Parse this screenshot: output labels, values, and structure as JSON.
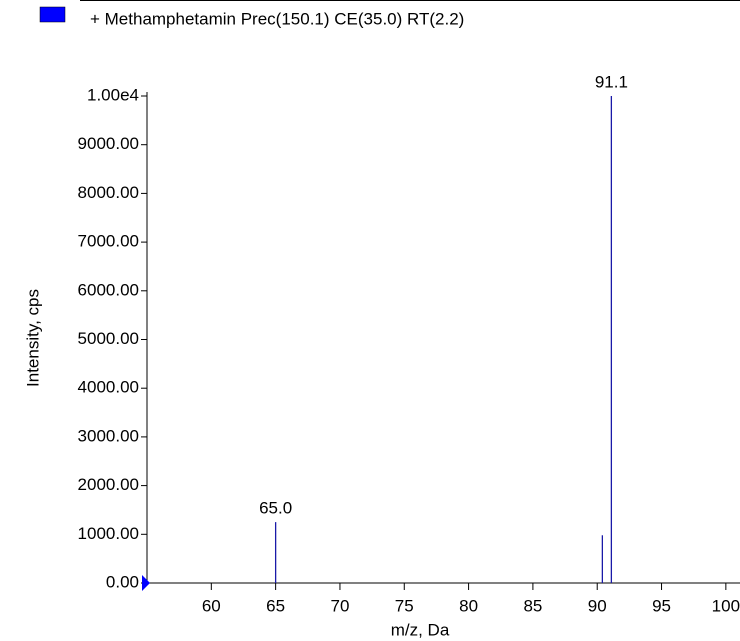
{
  "chart_data": {
    "type": "stick",
    "legend": "+ Methamphetamin Prec(150.1) CE(35.0) RT(2.2)",
    "legend_color": "#0000ff",
    "xlabel": "m/z, Da",
    "ylabel": "Intensity, cps",
    "x": [
      65.0,
      90.4,
      91.1
    ],
    "values": [
      1250,
      980,
      10000
    ],
    "color": "#1a1aa8",
    "annotations": [
      {
        "x": 65.0,
        "label": "65.0"
      },
      {
        "x": 91.1,
        "label": "91.1"
      }
    ],
    "xlim": [
      55,
      101.1
    ],
    "ylim": [
      0,
      10000
    ],
    "xticks": [
      60,
      65,
      70,
      75,
      80,
      85,
      90,
      95,
      100
    ],
    "yticks": [
      {
        "value": 0,
        "label": "0.00"
      },
      {
        "value": 1000,
        "label": "1000.00"
      },
      {
        "value": 2000,
        "label": "2000.00"
      },
      {
        "value": 3000,
        "label": "3000.00"
      },
      {
        "value": 4000,
        "label": "4000.00"
      },
      {
        "value": 5000,
        "label": "5000.00"
      },
      {
        "value": 6000,
        "label": "6000.00"
      },
      {
        "value": 7000,
        "label": "7000.00"
      },
      {
        "value": 8000,
        "label": "8000.00"
      },
      {
        "value": 9000,
        "label": "9000.00"
      },
      {
        "value": 10000,
        "label": "1.00e4"
      }
    ]
  }
}
